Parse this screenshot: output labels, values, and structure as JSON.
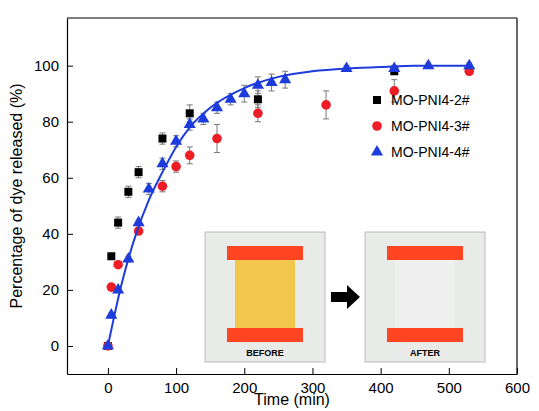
{
  "chart_data": {
    "type": "scatter",
    "x_label": "Time (min)",
    "y_label": "Percentage of dye released (%)",
    "xlim": [
      -60,
      600
    ],
    "ylim": [
      -10,
      117
    ],
    "xticks": [
      0,
      100,
      200,
      300,
      400,
      500,
      600
    ],
    "yticks": [
      0,
      20,
      40,
      60,
      80,
      100
    ],
    "legend": "upper right",
    "series": [
      {
        "name": "MO-PNI4-2#",
        "type": "scatter",
        "marker": "square",
        "color": "#000000",
        "x": [
          0,
          5,
          15,
          30,
          45,
          80,
          120,
          220,
          420
        ],
        "values": [
          0,
          32,
          44,
          55,
          62,
          74,
          83,
          88,
          98
        ],
        "errors": [
          1,
          1,
          2,
          2,
          2,
          2,
          3,
          3,
          1
        ]
      },
      {
        "name": "MO-PNI4-3#",
        "type": "scatter",
        "marker": "circle",
        "color": "#ee1c24",
        "x": [
          0,
          5,
          15,
          45,
          80,
          100,
          120,
          160,
          220,
          320,
          420,
          530
        ],
        "values": [
          0,
          21,
          29,
          41,
          57,
          64,
          68,
          74,
          83,
          86,
          91,
          98
        ],
        "errors": [
          1,
          1,
          1,
          1,
          2,
          2,
          3,
          5,
          3,
          5,
          4,
          1
        ]
      },
      {
        "name": "MO-PNI4-4#",
        "type": "scatter",
        "marker": "triangle",
        "color": "#1e3cdc",
        "x": [
          0,
          5,
          15,
          30,
          45,
          60,
          80,
          100,
          120,
          140,
          160,
          180,
          200,
          220,
          240,
          260,
          350,
          420,
          470,
          530
        ],
        "values": [
          0,
          11,
          20,
          31,
          44,
          56,
          65,
          73,
          79,
          81,
          85,
          88,
          90,
          93,
          94,
          95,
          99,
          99,
          100,
          100
        ],
        "errors": [
          1,
          1,
          1,
          1,
          1,
          2,
          2,
          2,
          2,
          2,
          2,
          2,
          3,
          3,
          3,
          3,
          1,
          1,
          1,
          1
        ]
      },
      {
        "type": "line",
        "line_style": "solid",
        "color": "#1e3cdc",
        "x": [
          0,
          20,
          40,
          60,
          80,
          100,
          120,
          150,
          200,
          250,
          300,
          350,
          400,
          450,
          500,
          530
        ],
        "values": [
          0,
          22,
          39,
          52,
          62,
          71,
          78,
          85,
          92,
          96,
          98,
          99,
          99.5,
          100,
          100,
          100
        ]
      }
    ],
    "annotations": [
      {
        "text": "BEFORE"
      },
      {
        "text": "AFTER"
      }
    ]
  }
}
